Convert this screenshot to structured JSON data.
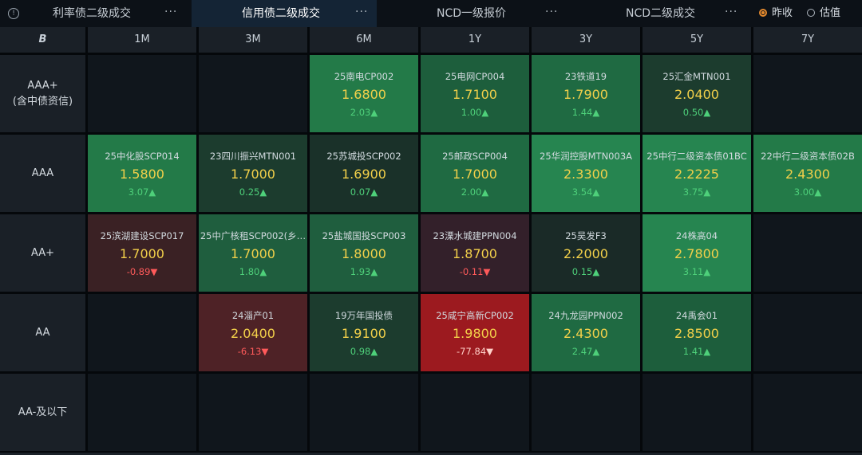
{
  "tabs": [
    {
      "label": "利率债二级成交",
      "more": "···"
    },
    {
      "label": "信用债二级成交",
      "more": "···"
    },
    {
      "label": "NCD一级报价",
      "more": "···"
    },
    {
      "label": "NCD二级成交",
      "more": "···"
    }
  ],
  "info_icon": "info-circle-icon",
  "radio": {
    "option1": "昨收",
    "option2": "估值"
  },
  "header": {
    "corner_symbol": "B",
    "cols": [
      "1M",
      "3M",
      "6M",
      "1Y",
      "3Y",
      "5Y",
      "7Y"
    ]
  },
  "rows": [
    {
      "label_line1": "AAA+",
      "label_line2": "(含中债资信)"
    },
    {
      "label_line1": "AAA",
      "label_line2": ""
    },
    {
      "label_line1": "AA+",
      "label_line2": ""
    },
    {
      "label_line1": "AA",
      "label_line2": ""
    },
    {
      "label_line1": "AA-及以下",
      "label_line2": ""
    }
  ],
  "cells": {
    "r0c2": {
      "name": "25南电CP002",
      "yield": "1.6800",
      "change": "2.03▲"
    },
    "r0c3": {
      "name": "25电网CP004",
      "yield": "1.7100",
      "change": "1.00▲"
    },
    "r0c4": {
      "name": "23铁道19",
      "yield": "1.7900",
      "change": "1.44▲"
    },
    "r0c5": {
      "name": "25汇金MTN001",
      "yield": "2.0400",
      "change": "0.50▲"
    },
    "r1c0": {
      "name": "25中化股SCP014",
      "yield": "1.5800",
      "change": "3.07▲"
    },
    "r1c1": {
      "name": "23四川振兴MTN001",
      "yield": "1.7000",
      "change": "0.25▲"
    },
    "r1c2": {
      "name": "25苏城投SCP002",
      "yield": "1.6900",
      "change": "0.07▲"
    },
    "r1c3": {
      "name": "25邮政SCP004",
      "yield": "1.7000",
      "change": "2.00▲"
    },
    "r1c4": {
      "name": "25华润控股MTN003A",
      "yield": "2.3300",
      "change": "3.54▲"
    },
    "r1c5": {
      "name": "25中行二级资本债01BC",
      "yield": "2.2225",
      "change": "3.75▲"
    },
    "r1c6": {
      "name": "22中行二级资本债02B",
      "yield": "2.4300",
      "change": "3.00▲"
    },
    "r2c0": {
      "name": "25滨湖建设SCP017",
      "yield": "1.7000",
      "change": "-0.89▼"
    },
    "r2c1": {
      "name": "25中广核租SCP002(乡…",
      "yield": "1.7000",
      "change": "1.80▲"
    },
    "r2c2": {
      "name": "25盐城国投SCP003",
      "yield": "1.8000",
      "change": "1.93▲"
    },
    "r2c3": {
      "name": "23溧水城建PPN004",
      "yield": "1.8700",
      "change": "-0.11▼"
    },
    "r2c4": {
      "name": "25吴发F3",
      "yield": "2.2000",
      "change": "0.15▲"
    },
    "r2c5": {
      "name": "24株高04",
      "yield": "2.7800",
      "change": "3.11▲"
    },
    "r3c1": {
      "name": "24淄产01",
      "yield": "2.0400",
      "change": "-6.13▼"
    },
    "r3c2": {
      "name": "19万年国投债",
      "yield": "1.9100",
      "change": "0.98▲"
    },
    "r3c3": {
      "name": "25咸宁高新CP002",
      "yield": "1.9800",
      "change": "-77.84▼"
    },
    "r3c4": {
      "name": "24九龙园PPN002",
      "yield": "2.4300",
      "change": "2.47▲"
    },
    "r3c5": {
      "name": "24禹会01",
      "yield": "2.8500",
      "change": "1.41▲"
    }
  },
  "colors": {
    "green_strong": "#237a48",
    "green_mid": "#1d5e3c",
    "green_weak": "#1c3c2e",
    "red_weak": "#3a2124",
    "red_mid": "#4e2226",
    "red_strong": "#9c1a1f",
    "yield_text": "#f2d04a",
    "up_text": "#4ed07a",
    "down_text": "#ff5a5a",
    "accent_orange": "#e58a2e"
  }
}
